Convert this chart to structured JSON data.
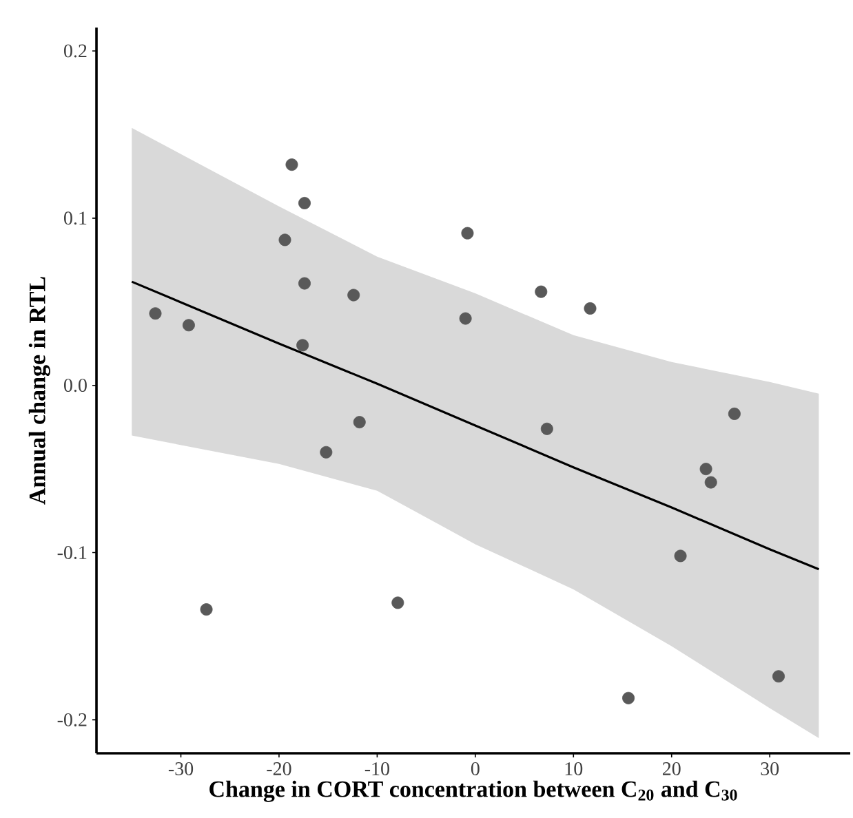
{
  "chart_data": {
    "type": "scatter",
    "xlabel": "Change in CORT concentration between C$_{20}$  and C$_{30}$",
    "ylabel": "Annual change in RTL",
    "xlim": [
      -38.6,
      38.2
    ],
    "ylim": [
      -0.22,
      0.214
    ],
    "xticks": [
      -30,
      -20,
      -10,
      0,
      10,
      20,
      30
    ],
    "yticks": [
      {
        "value": -0.2,
        "label": "-0.2"
      },
      {
        "value": -0.1,
        "label": "-0.1"
      },
      {
        "value": 0,
        "label": "0.0"
      },
      {
        "value": 0.1,
        "label": "0.1"
      },
      {
        "value": 0.2,
        "label": "0.2"
      }
    ],
    "grid": false,
    "series": [
      {
        "type": "line",
        "color": "#000000",
        "marker": "none",
        "line_style": "solid",
        "x": [
          -35,
          -20,
          -10,
          0,
          10,
          20,
          30,
          35
        ],
        "values": [
          0.062,
          0.025,
          0.001,
          -0.024,
          -0.049,
          -0.073,
          -0.098,
          -0.11
        ],
        "upper": [
          0.154,
          0.107,
          0.077,
          0.055,
          0.03,
          0.014,
          0.002,
          -0.005
        ],
        "lower": [
          -0.03,
          -0.047,
          -0.063,
          -0.095,
          -0.122,
          -0.156,
          -0.193,
          -0.211
        ]
      },
      {
        "color": "#595959",
        "marker": "circle",
        "x": [
          -32.6,
          -29.2,
          -18.7,
          -17.4,
          -19.4,
          -17.4,
          -12.4,
          -17.6,
          -11.8,
          -15.2,
          -0.8,
          6.7,
          11.7,
          -1.0,
          7.3,
          26.4,
          23.5,
          24.0,
          20.9,
          -27.4,
          -7.9,
          15.6,
          30.9
        ],
        "values": [
          0.043,
          0.036,
          0.132,
          0.109,
          0.087,
          0.061,
          0.054,
          0.024,
          -0.022,
          -0.04,
          0.091,
          0.056,
          0.046,
          0.04,
          -0.026,
          -0.017,
          -0.05,
          -0.058,
          -0.102,
          -0.134,
          -0.13,
          -0.187,
          -0.174
        ]
      }
    ]
  }
}
